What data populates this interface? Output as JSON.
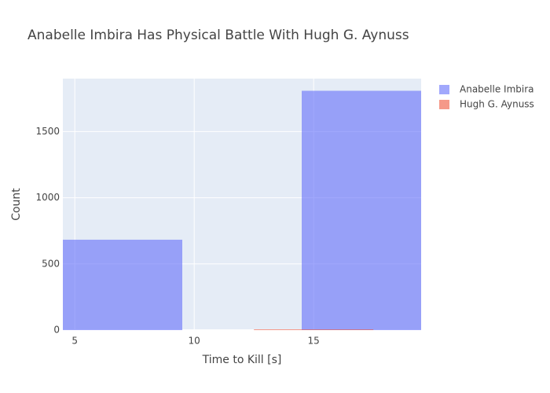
{
  "chart_data": {
    "type": "bar",
    "subtype": "overlaid-histogram",
    "title": "Anabelle Imbira Has Physical Battle With Hugh G. Aynuss",
    "xlabel": "Time to Kill [s]",
    "ylabel": "Count",
    "xlim": [
      4.5,
      19.5
    ],
    "ylim": [
      0,
      1900
    ],
    "xticks": [
      5,
      10,
      15
    ],
    "yticks": [
      0,
      500,
      1000,
      1500
    ],
    "grid": true,
    "legend_position": "top-right",
    "bar_opacity": 0.6,
    "series": [
      {
        "name": "Anabelle Imbira",
        "color": "#636efa",
        "bins": [
          {
            "x0": 4.5,
            "x1": 9.5,
            "value": 683
          },
          {
            "x0": 9.5,
            "x1": 14.5,
            "value": 0
          },
          {
            "x0": 14.5,
            "x1": 19.5,
            "value": 1808
          }
        ]
      },
      {
        "name": "Hugh G. Aynuss",
        "color": "#ef553b",
        "bins": [
          {
            "x0": 12.5,
            "x1": 17.5,
            "value": 4
          }
        ]
      }
    ]
  }
}
